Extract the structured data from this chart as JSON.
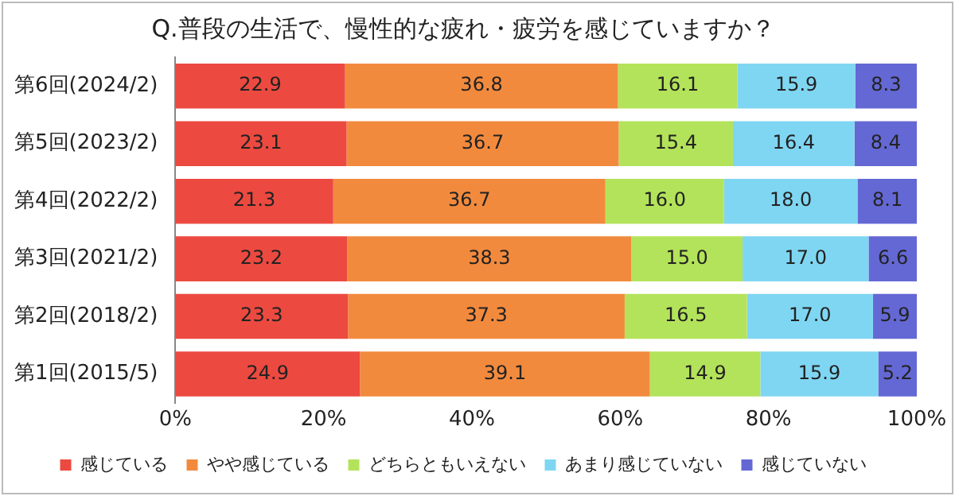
{
  "chart_data": {
    "type": "bar",
    "orientation": "horizontal",
    "stacked": true,
    "title": "Q.普段の生活で、慢性的な疲れ・疲労を感じていますか？",
    "categories": [
      "第6回(2024/2)",
      "第5回(2023/2)",
      "第4回(2022/2)",
      "第3回(2021/2)",
      "第2回(2018/2)",
      "第1回(2015/5)"
    ],
    "series": [
      {
        "name": "感じている",
        "color": "#ec4a40",
        "values": [
          22.9,
          23.1,
          21.3,
          23.2,
          23.3,
          24.9
        ],
        "value_labels": [
          "22.9",
          "23.1",
          "21.3",
          "23.2",
          "23.3",
          "24.9"
        ]
      },
      {
        "name": "やや感じている",
        "color": "#f28a3e",
        "values": [
          36.8,
          36.7,
          36.7,
          38.3,
          37.3,
          39.1
        ],
        "value_labels": [
          "36.8",
          "36.7",
          "36.7",
          "38.3",
          "37.3",
          "39.1"
        ]
      },
      {
        "name": "どちらともいえない",
        "color": "#b3e35a",
        "values": [
          16.1,
          15.4,
          16.0,
          15.0,
          16.5,
          14.9
        ],
        "value_labels": [
          "16.1",
          "15.4",
          "16.0",
          "15.0",
          "16.5",
          "14.9"
        ]
      },
      {
        "name": "あまり感じていない",
        "color": "#7fd6f2",
        "values": [
          15.9,
          16.4,
          18.0,
          17.0,
          17.0,
          15.9
        ],
        "value_labels": [
          "15.9",
          "16.4",
          "18.0",
          "17.0",
          "17.0",
          "15.9"
        ]
      },
      {
        "name": "感じていない",
        "color": "#6468d4",
        "values": [
          8.3,
          8.4,
          8.1,
          6.6,
          5.9,
          5.2
        ],
        "value_labels": [
          "8.3",
          "8.4",
          "8.1",
          "6.6",
          "5.9",
          "5.2"
        ]
      }
    ],
    "xlim": [
      0,
      100
    ],
    "xticks": [
      {
        "value": 0,
        "label": "0%"
      },
      {
        "value": 20,
        "label": "20%"
      },
      {
        "value": 40,
        "label": "40%"
      },
      {
        "value": 60,
        "label": "60%"
      },
      {
        "value": 80,
        "label": "80%"
      },
      {
        "value": 100,
        "label": "100%"
      }
    ],
    "grid": false,
    "legend": "bottom"
  }
}
